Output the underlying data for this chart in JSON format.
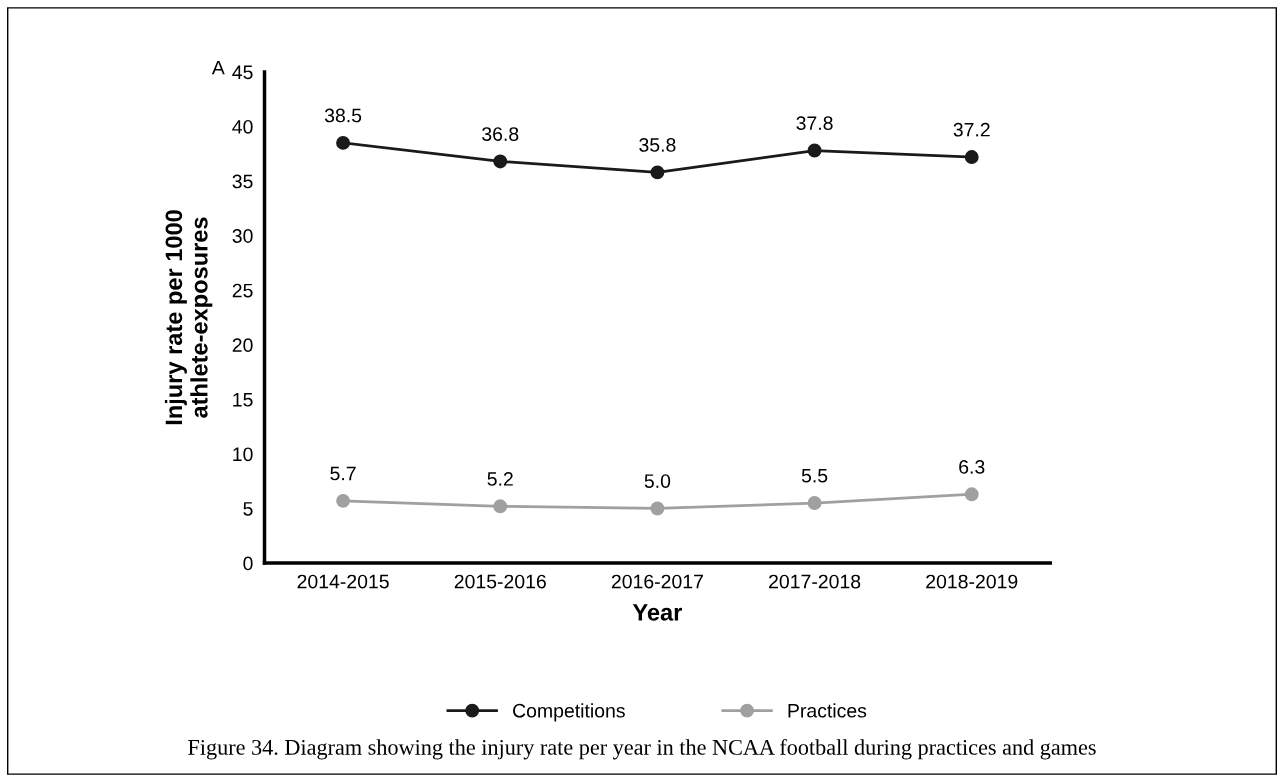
{
  "chart_data": {
    "type": "line",
    "ylabel": "Injury rate per 1000\nathlete-exposures",
    "xlabel": "Year",
    "categories": [
      "2014-2015",
      "2015-2016",
      "2016-2017",
      "2017-2018",
      "2018-2019"
    ],
    "series": [
      {
        "name": "Competitions",
        "color": "#1a1a1a",
        "values": [
          38.5,
          36.8,
          35.8,
          37.8,
          37.2
        ]
      },
      {
        "name": "Practices",
        "color": "#a0a0a0",
        "values": [
          5.7,
          5.2,
          5.0,
          5.5,
          6.3
        ],
        "value_labels": [
          "5.7",
          "5.2",
          "5.0",
          "5.5",
          "6.3"
        ]
      }
    ],
    "ylim": [
      0,
      45
    ],
    "yticks": [
      0,
      5,
      10,
      15,
      20,
      25,
      30,
      35,
      40,
      45
    ],
    "data_labels": true,
    "legend": "bottom",
    "grid": false,
    "marker": "circle",
    "line_style": "solid",
    "annotations": [
      "A",
      "Figure 34. Diagram showing the injury rate per year in the NCAA football during practices and games"
    ]
  }
}
